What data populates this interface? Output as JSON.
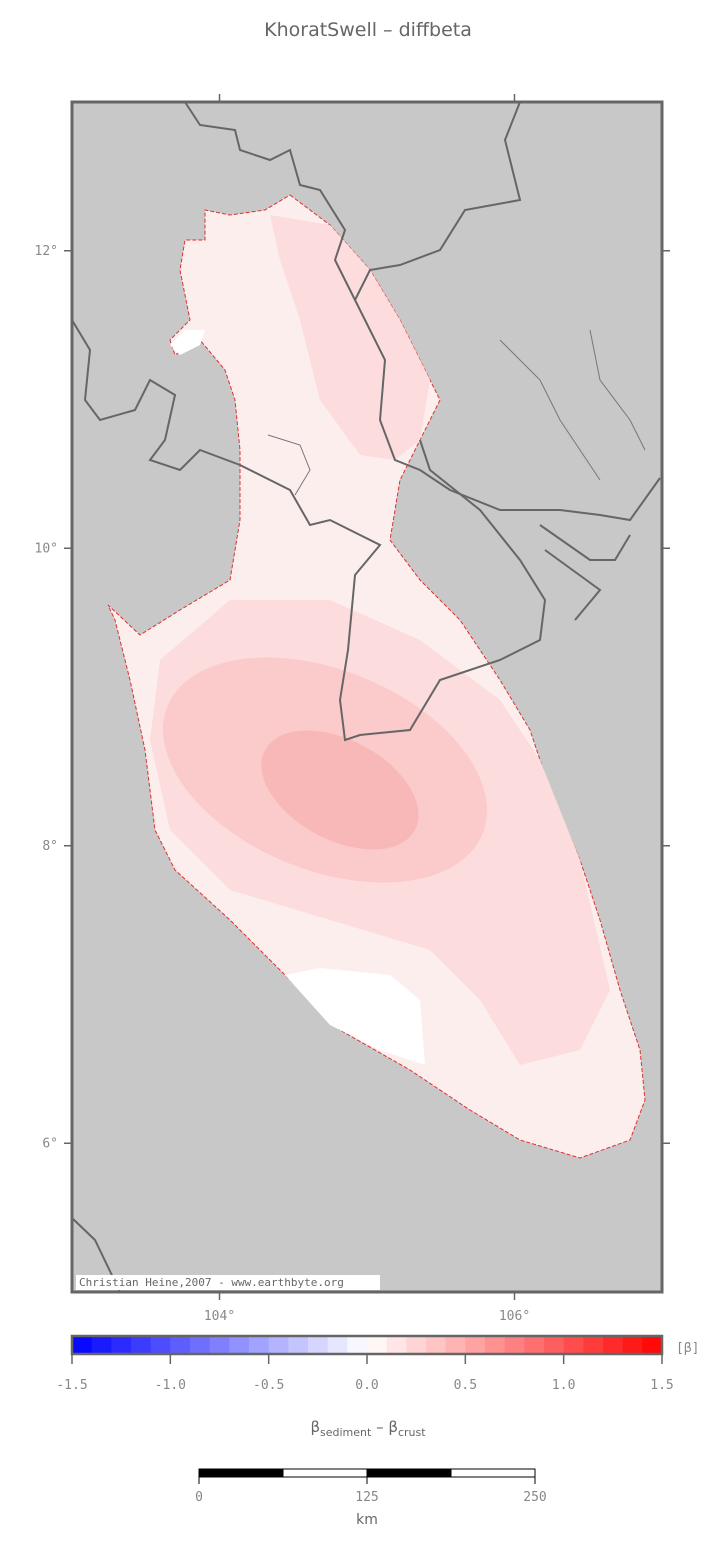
{
  "map": {
    "title": "KhoratSwell – diffbeta",
    "xlim": [
      103,
      107
    ],
    "ylim": [
      5,
      13
    ],
    "xticks": [
      {
        "value": 104,
        "label": "104°"
      },
      {
        "value": 106,
        "label": "106°"
      }
    ],
    "yticks": [
      {
        "value": 12,
        "label": "12°"
      },
      {
        "value": 10,
        "label": "10°"
      },
      {
        "value": 8,
        "label": "8°"
      },
      {
        "value": 6,
        "label": "6°"
      }
    ],
    "credit": "Christian Heine,2007 - www.earthbyte.org"
  },
  "colorbar": {
    "lim": [
      -1.5,
      1.5
    ],
    "colors": [
      "#0000ff",
      "#ffffff",
      "#ff0000"
    ],
    "ticks": [
      -1.5,
      {
        "value": -1,
        "label": "-1.0"
      },
      -0.5,
      {
        "value": 0,
        "label": "0.0"
      },
      0.5,
      {
        "value": 1,
        "label": "1.0"
      },
      1.5
    ],
    "unit": "[β]",
    "label": {
      "beta1": "β",
      "sub1": "sediment",
      "minus": " – ",
      "beta2": "β",
      "sub2": "crust"
    }
  },
  "scalebar": {
    "ticks": [
      0,
      125,
      250
    ],
    "unit": "km"
  }
}
